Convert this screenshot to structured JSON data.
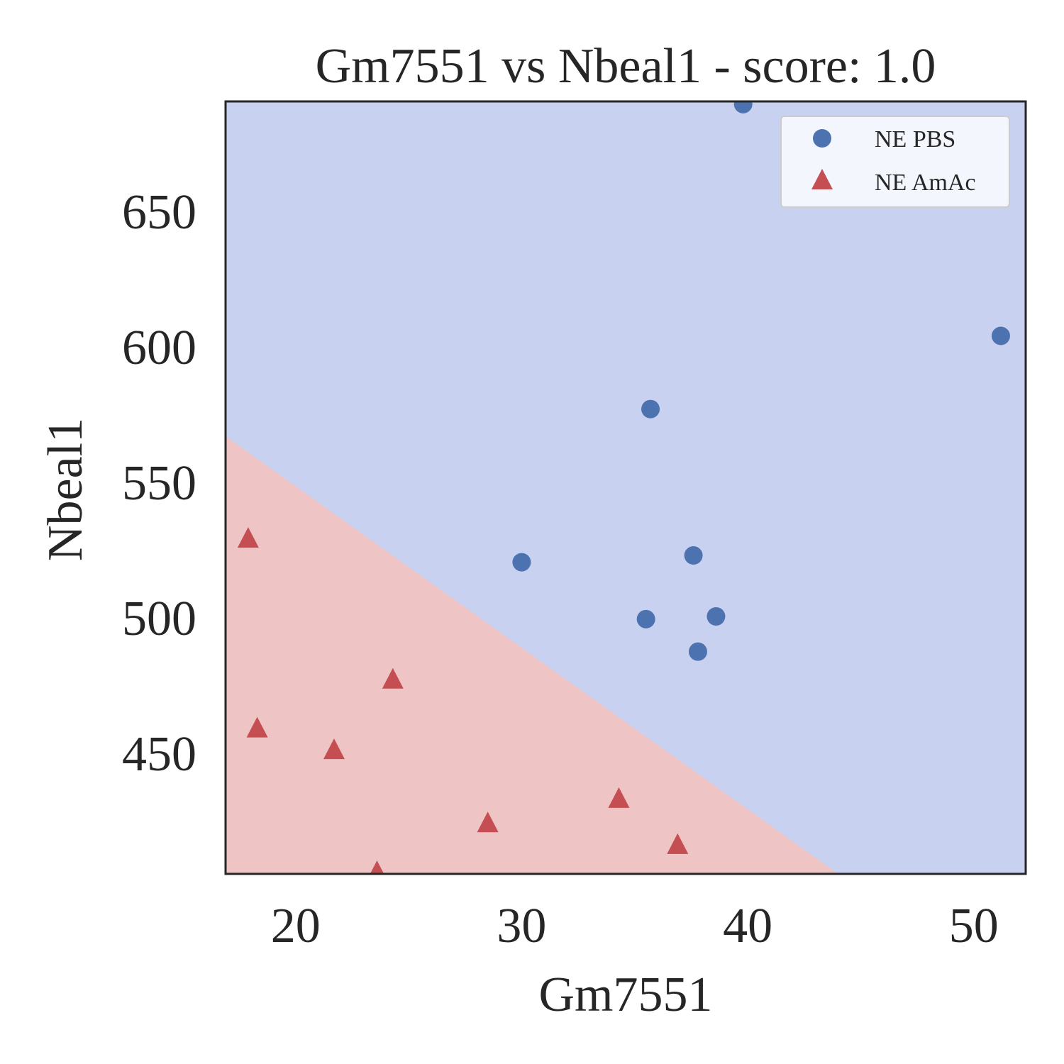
{
  "chart_data": {
    "type": "scatter",
    "title": "Gm7551 vs Nbeal1 - score: 1.0",
    "xlabel": "Gm7551",
    "ylabel": "Nbeal1",
    "xlim": [
      16.9,
      52.3
    ],
    "ylim": [
      405.5,
      690.5
    ],
    "xticks": [
      20,
      30,
      40,
      50
    ],
    "yticks": [
      450,
      500,
      550,
      600,
      650
    ],
    "legend_position": "top-right",
    "decision_boundary": {
      "points": [
        [
          16.9,
          567
        ],
        [
          44.0,
          405.5
        ]
      ],
      "above_class": "NE PBS",
      "below_class": "NE AmAc"
    },
    "colors": {
      "NE PBS": "#4c72b0",
      "NE AmAc": "#c44e52",
      "region_above": "#c9d1f1",
      "region_below": "#efc4c5"
    },
    "series": [
      {
        "name": "NE PBS",
        "marker": "circle",
        "x": [
          39.8,
          51.2,
          35.7,
          30.0,
          37.6,
          35.5,
          38.6,
          37.8
        ],
        "y": [
          689.5,
          604,
          577,
          520.5,
          523,
          499.5,
          500.5,
          487.5
        ]
      },
      {
        "name": "NE AmAc",
        "marker": "triangle",
        "x": [
          17.9,
          18.3,
          21.7,
          24.3,
          28.5,
          34.3,
          36.9,
          23.6
        ],
        "y": [
          529,
          459,
          451,
          477,
          424,
          433,
          416,
          406
        ]
      }
    ]
  }
}
